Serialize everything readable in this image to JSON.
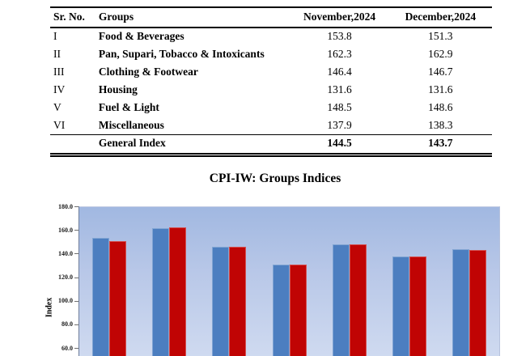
{
  "table": {
    "columns": [
      "Sr. No.",
      "Groups",
      "November,2024",
      "December,2024"
    ],
    "rows": [
      [
        "I",
        "Food & Beverages",
        "153.8",
        "151.3"
      ],
      [
        "II",
        "Pan, Supari, Tobacco & Intoxicants",
        "162.3",
        "162.9"
      ],
      [
        "III",
        "Clothing & Footwear",
        "146.4",
        "146.7"
      ],
      [
        "IV",
        "Housing",
        "131.6",
        "131.6"
      ],
      [
        "V",
        "Fuel & Light",
        "148.5",
        "148.6"
      ],
      [
        "VI",
        "Miscellaneous",
        "137.9",
        "138.3"
      ]
    ],
    "footer": [
      "",
      "General Index",
      "144.5",
      "143.7"
    ]
  },
  "chart_data": {
    "type": "bar",
    "title": "CPI-IW: Groups Indices",
    "xlabel": "",
    "ylabel": "Index",
    "categories": [
      "Food & Beverages",
      "Pan, Supari, Tobacco & Intoxicants",
      "Clothing & Footwear",
      "Housing",
      "Fuel & Light",
      "Miscellaneous",
      "General Index"
    ],
    "series": [
      {
        "name": "November,2024",
        "color": "#4c7ec0",
        "values": [
          153.8,
          162.3,
          146.4,
          131.6,
          148.5,
          137.9,
          144.5
        ]
      },
      {
        "name": "December,2024",
        "color": "#c00404",
        "values": [
          151.3,
          162.9,
          146.7,
          131.6,
          148.6,
          138.3,
          143.7
        ]
      }
    ],
    "ytick_labels": [
      "180.0",
      "160.0",
      "140.0",
      "120.0",
      "100.0",
      "80.0",
      "60.0"
    ],
    "ylim_top": 180.0,
    "ylim_bottom_visible": 60.0,
    "grid": false,
    "legend_position": "cut-off-below",
    "plot_bg_gradient": [
      "#a1b8e1",
      "#cfdaf0"
    ]
  }
}
